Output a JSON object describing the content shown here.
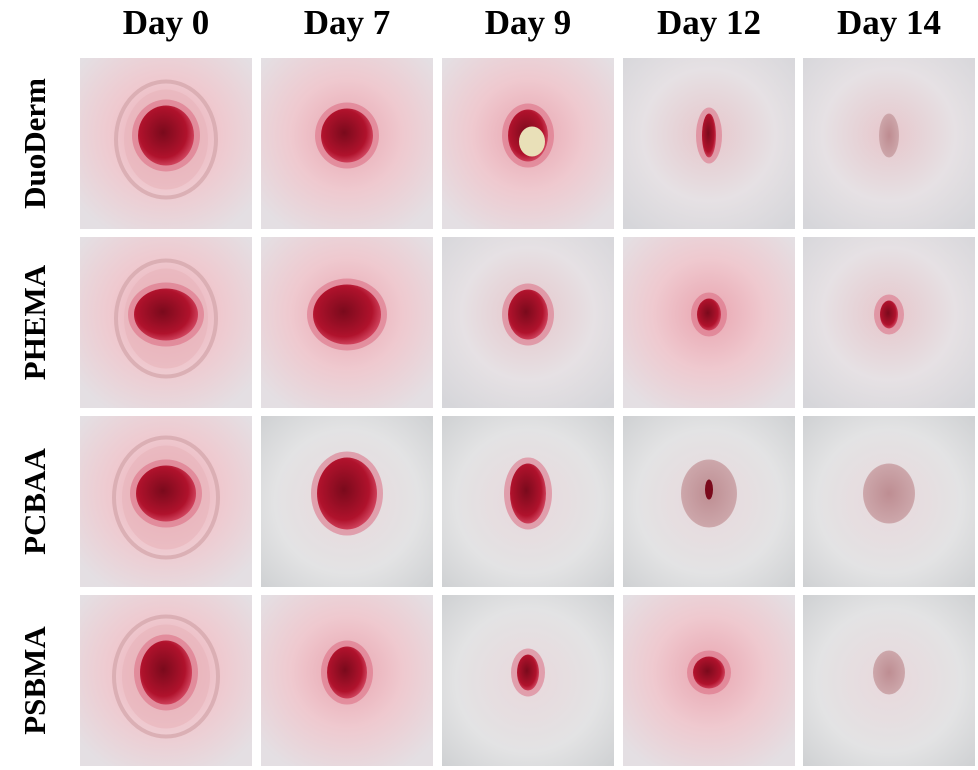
{
  "columns": [
    "Day 0",
    "Day 7",
    "Day 9",
    "Day 12",
    "Day 14"
  ],
  "rows": [
    "DuoDerm",
    "PHEMA",
    "PCBAA",
    "PSBMA"
  ]
}
